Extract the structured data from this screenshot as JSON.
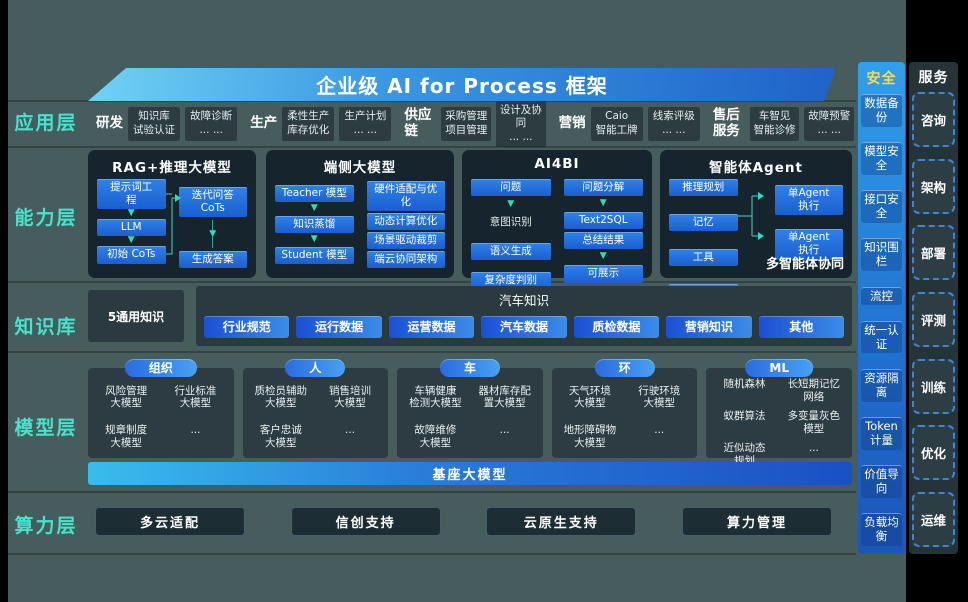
{
  "banner": {
    "title": "企业级 AI for Process 框架"
  },
  "app": {
    "label": "应用层",
    "groups": [
      {
        "name": "研发",
        "boxes": [
          "知识库\n试验认证",
          "故障诊断\n... ..."
        ]
      },
      {
        "name": "生产",
        "boxes": [
          "柔性生产\n库存优化",
          "生产计划\n... ..."
        ]
      },
      {
        "name": "供应链",
        "boxes": [
          "采购管理\n项目管理",
          "设计及协同\n... ..."
        ]
      },
      {
        "name": "营销",
        "boxes": [
          "Caio\n智能工牌",
          "线索评级\n... ..."
        ]
      },
      {
        "name": "售后服务",
        "boxes": [
          "车智见\n智能诊修",
          "故障预警\n... ..."
        ]
      }
    ]
  },
  "capability": {
    "label": "能力层",
    "boxes": [
      {
        "title": "RAG+推理大模型",
        "left": [
          "提示词工\n程",
          "LLM",
          "初始 CoTs"
        ],
        "right": [
          "迭代问答\nCoTs",
          "生成答案"
        ]
      },
      {
        "title": "端侧大模型",
        "left": [
          "Teacher 模型",
          "知识蒸馏",
          "Student 模型"
        ],
        "right": [
          "硬件适配与优\n化",
          "动态计算优化",
          "场景驱动裁剪",
          "端云协同架构"
        ]
      },
      {
        "title": "AI4BI",
        "left": [
          "问题",
          {
            "t": "意图识别",
            "plain": true
          },
          "语义生成",
          "复杂度判别"
        ],
        "right": [
          "问题分解",
          "Text2SQL",
          "总结结果",
          "可展示"
        ]
      },
      {
        "title": "智能体Agent",
        "left": [
          "推理规划",
          "记忆",
          "工具",
          "执行"
        ],
        "right": [
          "单Agent\n执行",
          "单Agent\n执行"
        ],
        "note": "多智能体协同"
      }
    ]
  },
  "knowledge": {
    "label": "知识库",
    "general": "5通用知识",
    "auto_title": "汽车知识",
    "pills": [
      "行业规范",
      "运行数据",
      "运营数据",
      "汽车数据",
      "质检数据",
      "营销知识",
      "其他"
    ]
  },
  "model": {
    "label": "模型层",
    "groups": [
      {
        "pill": "组织",
        "items": [
          "风险管理\n大模型",
          "行业标准\n大模型",
          "规章制度\n大模型",
          "..."
        ]
      },
      {
        "pill": "人",
        "items": [
          "质检员辅助\n大模型",
          "销售培训\n大模型",
          "客户忠诚\n大模型",
          "..."
        ]
      },
      {
        "pill": "车",
        "items": [
          "车辆健康\n检测大模型",
          "器材库存配\n置大模型",
          "故障维修\n大模型",
          "..."
        ]
      },
      {
        "pill": "环",
        "items": [
          "天气环境\n大模型",
          "行驶环境\n大模型",
          "地形障碍物\n大模型",
          "..."
        ]
      },
      {
        "pill": "ML",
        "items": [
          "随机森林",
          "长短期记忆\n网络",
          "蚁群算法",
          "多变量灰色\n模型",
          "近似动态\n规划",
          "..."
        ]
      }
    ],
    "base_bar": "基座大模型"
  },
  "compute": {
    "label": "算力层",
    "items": [
      "多云适配",
      "信创支持",
      "云原生支持",
      "算力管理"
    ]
  },
  "security": {
    "header": "安全",
    "items": [
      "数据备份",
      "模型安全",
      "接口安全",
      "知识围栏",
      "流控",
      "统一认证",
      "资源隔离",
      "Token计量",
      "价值导向",
      "负载均衡"
    ]
  },
  "service": {
    "header": "服务",
    "items": [
      "咨询",
      "架构",
      "部署",
      "评测",
      "训练",
      "优化",
      "运维"
    ]
  },
  "colors": {
    "background": "#475c5d",
    "layer_label": "#44e4ce",
    "banner_gradient_start": "#72d2f4",
    "banner_gradient_end": "#1f63c8",
    "item_blue": "#1a5fd0",
    "security_header_yellow": "#ffd94a",
    "arrow_teal": "#35d8c0"
  }
}
